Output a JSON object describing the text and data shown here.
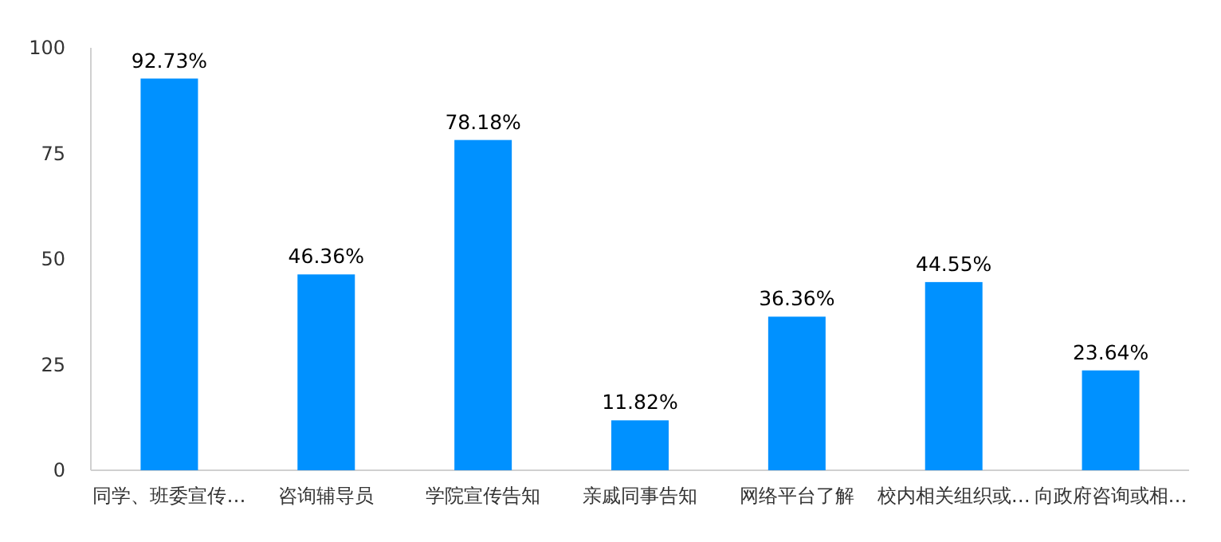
{
  "chart_data": {
    "type": "bar",
    "categories": [
      "同学、班委宣传…",
      "咨询辅导员",
      "学院宣传告知",
      "亲戚同事告知",
      "网络平台了解",
      "校内相关组织或…",
      "向政府咨询或相…"
    ],
    "values": [
      92.73,
      46.36,
      78.18,
      11.82,
      36.36,
      44.55,
      23.64
    ],
    "value_labels": [
      "92.73%",
      "46.36%",
      "78.18%",
      "11.82%",
      "36.36%",
      "44.55%",
      "23.64%"
    ],
    "color": "#0091ff",
    "ylim": [
      0,
      100
    ],
    "yticks": [
      0,
      25,
      50,
      75,
      100
    ]
  }
}
